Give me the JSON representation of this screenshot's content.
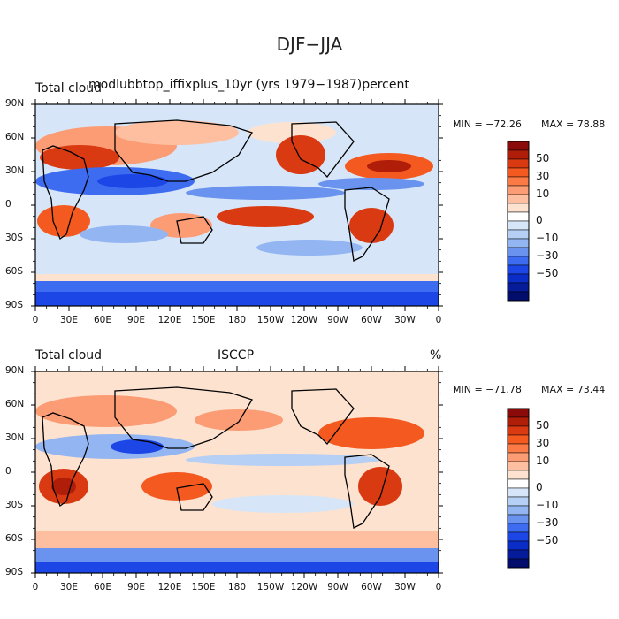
{
  "title": "DJF−JJA",
  "panels": [
    {
      "id": "model",
      "left_label": "Total cloud",
      "center_label": "modlubbtop_iffixplus_10yr (yrs 1979−1987)percent",
      "right_label": "",
      "min_text": "MIN = −72.26",
      "max_text": "MAX =  78.88"
    },
    {
      "id": "obs",
      "left_label": "Total cloud",
      "center_label": "ISCCP",
      "right_label": "%",
      "min_text": "MIN = −71.78",
      "max_text": "MAX =  73.44"
    }
  ],
  "lat_ticks": [
    "90N",
    "60N",
    "30N",
    "0",
    "30S",
    "60S",
    "90S"
  ],
  "lon_ticks": [
    "0",
    "30E",
    "60E",
    "90E",
    "120E",
    "150E",
    "180",
    "150W",
    "120W",
    "90W",
    "60W",
    "30W",
    "0"
  ],
  "colorbar": {
    "labels": [
      "50",
      "30",
      "10",
      "0",
      "−10",
      "−30",
      "−50"
    ],
    "colors": [
      "#8b0a0a",
      "#b01e0a",
      "#d93a12",
      "#f4591f",
      "#fb7a46",
      "#fc9c74",
      "#fdbfa0",
      "#fde2cf",
      "#ffffff",
      "#d6e6f8",
      "#b5cff5",
      "#93b5f2",
      "#6993ef",
      "#3d6cf0",
      "#1c47e6",
      "#0a2dc8",
      "#061b9a",
      "#030d6b"
    ]
  }
}
